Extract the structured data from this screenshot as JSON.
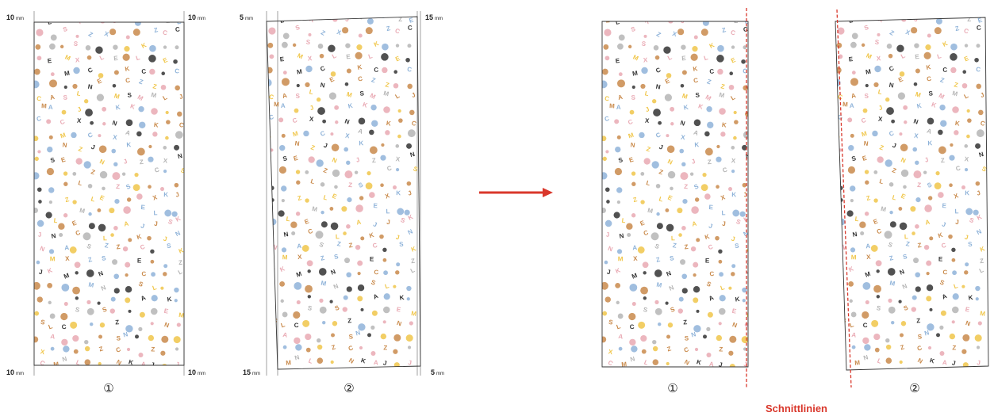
{
  "panels": {
    "left_plain": {
      "number": "①",
      "top_left": "10",
      "top_right": "10",
      "bottom_left": "10",
      "bottom_right": "10",
      "unit": "mm"
    },
    "left_slanted": {
      "number": "②",
      "top_left": "5",
      "top_right": "15",
      "bottom_left": "15",
      "bottom_right": "5",
      "unit": "mm"
    },
    "right_plain": {
      "number": "①"
    },
    "right_slanted": {
      "number": "②"
    }
  },
  "arrow": {
    "color": "#d9372b",
    "direction": "right-arrow-icon"
  },
  "cut_lines": {
    "label": "Schnittlinien",
    "color": "#d9372b",
    "style": "dashed"
  },
  "pattern": {
    "motif_colors": [
      "#c98a4b",
      "#e9a9b3",
      "#8fb3d9",
      "#333333",
      "#f0c64a",
      "#b5b5b5"
    ],
    "glyphs": [
      "A",
      "C",
      "E",
      "J",
      "S",
      "Z",
      "M",
      "N",
      "L",
      "X",
      "K"
    ]
  }
}
